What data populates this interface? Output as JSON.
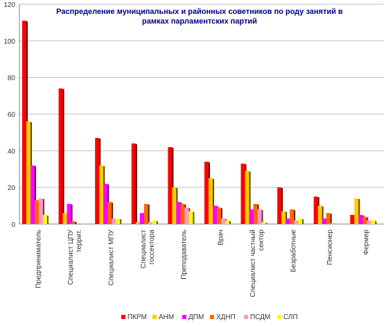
{
  "chart_data": {
    "type": "bar",
    "title_lines": [
      "Распределение муниципальных и районных советников по роду занятий в",
      "рамках парламентских партий"
    ],
    "xlabel": "",
    "ylabel": "",
    "ylim": [
      0,
      120
    ],
    "yticks": [
      0,
      20,
      40,
      60,
      80,
      100,
      120
    ],
    "grid": true,
    "legend_position": "bottom",
    "categories": [
      [
        "Предприниматель"
      ],
      [
        "Специалист ЦПУ",
        "террит."
      ],
      [
        "Специалист МПУ"
      ],
      [
        "Специалист",
        "госсектора"
      ],
      [
        "Преподаватель"
      ],
      [
        "Врач"
      ],
      [
        "Специалист частный",
        "сектор"
      ],
      [
        "Безработные"
      ],
      [
        "Пенсионер"
      ],
      [
        "Фермер"
      ]
    ],
    "series": [
      {
        "name": "ПКРМ",
        "color": "#ff0000",
        "values": [
          111,
          74,
          47,
          44,
          42,
          34,
          33,
          20,
          15,
          5
        ]
      },
      {
        "name": "АНМ",
        "color": "#ffcc00",
        "values": [
          56,
          6,
          32,
          1,
          20,
          25,
          29,
          7,
          10,
          14
        ]
      },
      {
        "name": "ДПМ",
        "color": "#ff00ff",
        "values": [
          32,
          11,
          22,
          6,
          12,
          10,
          8,
          3,
          3,
          5
        ]
      },
      {
        "name": "ХДНП",
        "color": "#ff6600",
        "values": [
          13,
          1.5,
          12,
          11,
          11,
          9,
          11,
          8,
          6,
          4
        ]
      },
      {
        "name": "ПСДМ",
        "color": "#ff99cc",
        "values": [
          14,
          0,
          3,
          1,
          9,
          3,
          8,
          2,
          0.5,
          2
        ]
      },
      {
        "name": "СЛП",
        "color": "#ffff00",
        "values": [
          5,
          0,
          3,
          2,
          7,
          2,
          1,
          3,
          0,
          2
        ]
      }
    ]
  }
}
